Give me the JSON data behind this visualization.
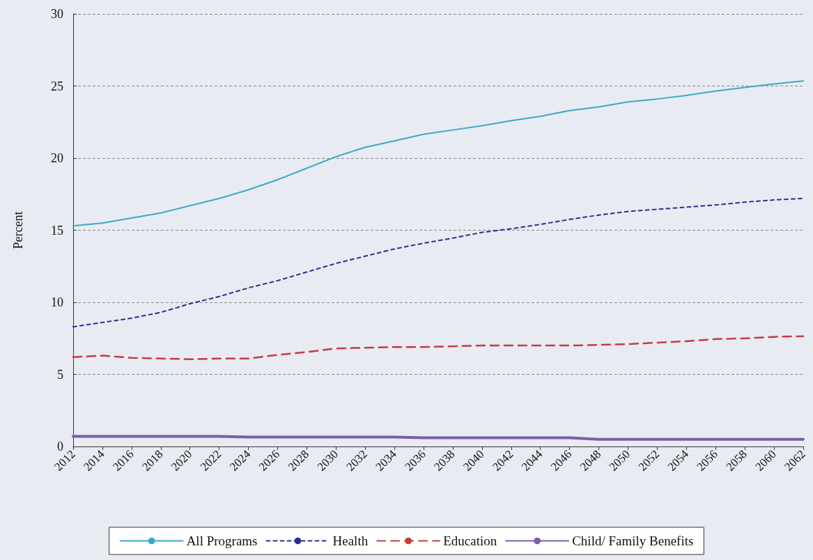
{
  "chart_data": {
    "type": "line",
    "ylabel": "Percent",
    "x": [
      2012,
      2014,
      2016,
      2018,
      2020,
      2022,
      2024,
      2026,
      2028,
      2030,
      2032,
      2034,
      2036,
      2038,
      2040,
      2042,
      2044,
      2046,
      2048,
      2050,
      2052,
      2054,
      2056,
      2058,
      2060,
      2062
    ],
    "xlim": [
      2012,
      2062
    ],
    "xticks": [
      2012,
      2014,
      2016,
      2018,
      2020,
      2022,
      2024,
      2026,
      2028,
      2030,
      2032,
      2034,
      2036,
      2038,
      2040,
      2042,
      2044,
      2046,
      2048,
      2050,
      2052,
      2054,
      2056,
      2058,
      2060,
      2062
    ],
    "ylim": [
      0,
      30
    ],
    "yticks": [
      0,
      5,
      10,
      15,
      20,
      25,
      30
    ],
    "grid": "y",
    "legend": "bottom",
    "marker": "none",
    "series": [
      {
        "name": "All Programs",
        "color": "#3aa9c4",
        "line_style": "solid",
        "values": [
          15.3,
          15.5,
          15.85,
          16.2,
          16.7,
          17.2,
          17.8,
          18.5,
          19.3,
          20.1,
          20.75,
          21.2,
          21.65,
          21.95,
          22.25,
          22.6,
          22.9,
          23.3,
          23.55,
          23.9,
          24.1,
          24.35,
          24.65,
          24.9,
          25.15,
          25.35
        ]
      },
      {
        "name": "Health",
        "color": "#26318f",
        "line_style": "dotted",
        "values": [
          8.3,
          8.6,
          8.9,
          9.3,
          9.9,
          10.4,
          11.0,
          11.5,
          12.1,
          12.7,
          13.2,
          13.7,
          14.1,
          14.45,
          14.85,
          15.1,
          15.4,
          15.75,
          16.05,
          16.3,
          16.45,
          16.6,
          16.75,
          16.95,
          17.1,
          17.2
        ]
      },
      {
        "name": "Education",
        "color": "#c43c3c",
        "line_style": "dashed",
        "values": [
          6.2,
          6.3,
          6.15,
          6.1,
          6.05,
          6.1,
          6.1,
          6.35,
          6.55,
          6.8,
          6.85,
          6.9,
          6.9,
          6.95,
          7.0,
          7.0,
          7.0,
          7.0,
          7.05,
          7.1,
          7.2,
          7.3,
          7.45,
          7.5,
          7.6,
          7.65
        ]
      },
      {
        "name": "Child/ Family Benefits",
        "color": "#7b5ea7",
        "line_style": "solid",
        "values": [
          0.7,
          0.7,
          0.7,
          0.7,
          0.7,
          0.7,
          0.65,
          0.65,
          0.65,
          0.65,
          0.65,
          0.65,
          0.6,
          0.6,
          0.6,
          0.6,
          0.6,
          0.6,
          0.5,
          0.5,
          0.5,
          0.5,
          0.5,
          0.5,
          0.5,
          0.5
        ]
      }
    ]
  }
}
